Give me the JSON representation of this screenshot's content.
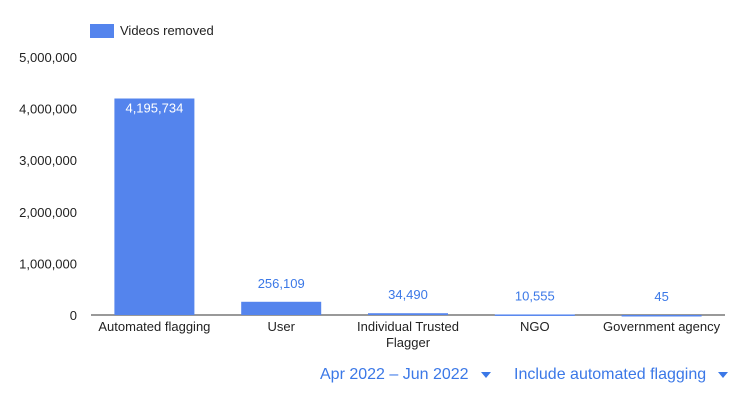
{
  "chart_data": {
    "type": "bar",
    "categories": [
      "Automated flagging",
      "User",
      "Individual Trusted Flagger",
      "NGO",
      "Government agency"
    ],
    "series": [
      {
        "name": "Videos removed",
        "values": [
          4195734,
          256109,
          34490,
          10555,
          45
        ],
        "data_labels": [
          "4,195,734",
          "256,109",
          "34,490",
          "10,555",
          "45"
        ]
      }
    ],
    "y_ticks": [
      {
        "value": 0,
        "label": "0"
      },
      {
        "value": 1000000,
        "label": "1,000,000"
      },
      {
        "value": 2000000,
        "label": "2,000,000"
      },
      {
        "value": 3000000,
        "label": "3,000,000"
      },
      {
        "value": 4000000,
        "label": "4,000,000"
      },
      {
        "value": 5000000,
        "label": "5,000,000"
      }
    ],
    "ylim": [
      0,
      5000000
    ],
    "grid": false,
    "legend_position": "top-left",
    "bar_color": "#5484ed",
    "label_outside_color": "#3b78e7",
    "label_inside_color": "#ffffff",
    "axis_text_color": "#222222"
  },
  "controls": {
    "date_range": "Apr 2022 – Jun 2022",
    "flagging_option": "Include automated flagging",
    "accent_color": "#3b78e7",
    "caret_icon": "triangle-down"
  }
}
